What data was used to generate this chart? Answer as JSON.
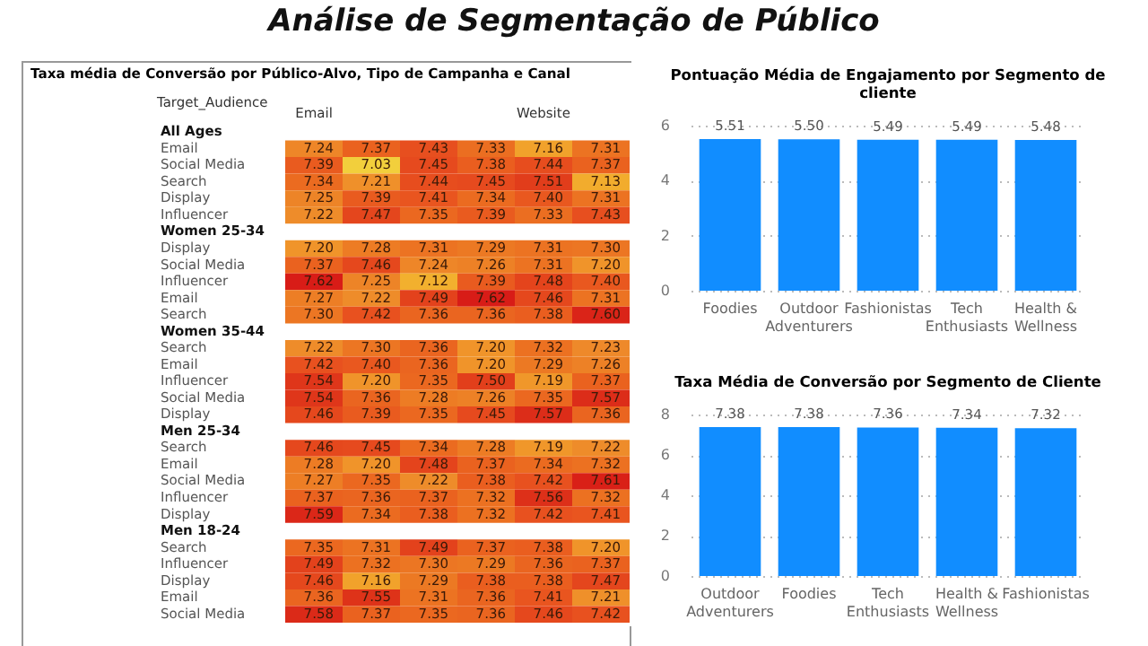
{
  "chart_data": [
    {
      "type": "heatmap",
      "title": "Taxa média de Conversão por Público-Alvo, Tipo de Campanha e Canal",
      "ylabel": "Target_Audience",
      "annotations": [
        "Análise de Segmentação de Público"
      ],
      "categories": [
        "Email",
        null,
        null,
        null,
        "Website",
        null
      ],
      "y_categories": [
        "All Ages",
        "Email",
        "Social Media",
        "Search",
        "Display",
        "Influencer",
        "Women 25-34",
        "Display",
        "Social Media",
        "Influencer",
        "Email",
        "Search",
        "Women 35-44",
        "Search",
        "Email",
        "Influencer",
        "Social Media",
        "Display",
        "Men 25-34",
        "Search",
        "Email",
        "Social Media",
        "Influencer",
        "Display",
        "Men 18-24",
        "Search",
        "Influencer",
        "Display",
        "Email",
        "Social Media"
      ],
      "cells": [
        [
          null,
          null,
          null,
          null,
          null,
          null
        ],
        [
          7.24,
          7.37,
          7.43,
          7.33,
          7.16,
          7.31
        ],
        [
          7.39,
          7.03,
          7.45,
          7.38,
          7.44,
          7.37
        ],
        [
          7.34,
          7.21,
          7.44,
          7.45,
          7.51,
          7.13
        ],
        [
          7.25,
          7.39,
          7.41,
          7.34,
          7.4,
          7.31
        ],
        [
          7.22,
          7.47,
          7.35,
          7.39,
          7.33,
          7.43
        ],
        [
          null,
          null,
          null,
          null,
          null,
          null
        ],
        [
          7.2,
          7.28,
          7.31,
          7.29,
          7.31,
          7.3
        ],
        [
          7.37,
          7.46,
          7.24,
          7.26,
          7.31,
          7.2
        ],
        [
          7.62,
          7.25,
          7.12,
          7.39,
          7.48,
          7.4
        ],
        [
          7.27,
          7.22,
          7.49,
          7.62,
          7.46,
          7.31
        ],
        [
          7.3,
          7.42,
          7.36,
          7.36,
          7.38,
          7.6
        ],
        [
          null,
          null,
          null,
          null,
          null,
          null
        ],
        [
          7.22,
          7.3,
          7.36,
          7.2,
          7.32,
          7.23
        ],
        [
          7.42,
          7.4,
          7.36,
          7.2,
          7.29,
          7.26
        ],
        [
          7.54,
          7.2,
          7.35,
          7.5,
          7.19,
          7.37
        ],
        [
          7.54,
          7.36,
          7.28,
          7.26,
          7.35,
          7.57
        ],
        [
          7.46,
          7.39,
          7.35,
          7.45,
          7.57,
          7.36
        ],
        [
          null,
          null,
          null,
          null,
          null,
          null
        ],
        [
          7.46,
          7.45,
          7.34,
          7.28,
          7.19,
          7.22
        ],
        [
          7.28,
          7.2,
          7.48,
          7.37,
          7.34,
          7.32
        ],
        [
          7.27,
          7.35,
          7.22,
          7.38,
          7.42,
          7.61
        ],
        [
          7.37,
          7.36,
          7.37,
          7.32,
          7.56,
          7.32
        ],
        [
          7.59,
          7.34,
          7.38,
          7.32,
          7.42,
          7.41
        ],
        [
          null,
          null,
          null,
          null,
          null,
          null
        ],
        [
          7.35,
          7.31,
          7.49,
          7.37,
          7.38,
          7.2
        ],
        [
          7.49,
          7.32,
          7.3,
          7.29,
          7.36,
          7.37
        ],
        [
          7.46,
          7.16,
          7.29,
          7.38,
          7.38,
          7.47
        ],
        [
          7.36,
          7.55,
          7.31,
          7.36,
          7.41,
          7.21
        ],
        [
          7.58,
          7.37,
          7.35,
          7.36,
          7.46,
          7.42
        ]
      ],
      "cell_labels": [
        [
          null,
          null,
          null,
          null,
          null,
          null
        ],
        [
          "7.24",
          "7.37",
          "7.43",
          "7.33",
          "7.16",
          "7.31"
        ],
        [
          "7.39",
          "7.03",
          "7.45",
          "7.38",
          "7.44",
          "7.37"
        ],
        [
          "7.34",
          "7.21",
          "7.44",
          "7.45",
          "7.51",
          "7.13"
        ],
        [
          "7.25",
          "7.39",
          "7.41",
          "7.34",
          "7.40",
          "7.31"
        ],
        [
          "7.22",
          "7.47",
          "7.35",
          "7.39",
          "7.33",
          "7.43"
        ],
        [
          null,
          null,
          null,
          null,
          null,
          null
        ],
        [
          "7.20",
          "7.28",
          "7.31",
          "7.29",
          "7.31",
          "7.30"
        ],
        [
          "7.37",
          "7.46",
          "7.24",
          "7.26",
          "7.31",
          "7.20"
        ],
        [
          "7.62",
          "7.25",
          "7.12",
          "7.39",
          "7.48",
          "7.40"
        ],
        [
          "7.27",
          "7.22",
          "7.49",
          "7.62",
          "7.46",
          "7.31"
        ],
        [
          "7.30",
          "7.42",
          "7.36",
          "7.36",
          "7.38",
          "7.60"
        ],
        [
          null,
          null,
          null,
          null,
          null,
          null
        ],
        [
          "7.22",
          "7.30",
          "7.36",
          "7.20",
          "7.32",
          "7.23"
        ],
        [
          "7.42",
          "7.40",
          "7.36",
          "7.20",
          "7.29",
          "7.26"
        ],
        [
          "7.54",
          "7.20",
          "7.35",
          "7.50",
          "7.19",
          "7.37"
        ],
        [
          "7.54",
          "7.36",
          "7.28",
          "7.26",
          "7.35",
          "7.57"
        ],
        [
          "7.46",
          "7.39",
          "7.35",
          "7.45",
          "7.57",
          "7.36"
        ],
        [
          null,
          null,
          null,
          null,
          null,
          null
        ],
        [
          "7.46",
          "7.45",
          "7.34",
          "7.28",
          "7.19",
          "7.22"
        ],
        [
          "7.28",
          "7.20",
          "7.48",
          "7.37",
          "7.34",
          "7.32"
        ],
        [
          "7.27",
          "7.35",
          "7.22",
          "7.38",
          "7.42",
          "7.61"
        ],
        [
          "7.37",
          "7.36",
          "7.37",
          "7.32",
          "7.56",
          "7.32"
        ],
        [
          "7.59",
          "7.34",
          "7.38",
          "7.32",
          "7.42",
          "7.41"
        ],
        [
          null,
          null,
          null,
          null,
          null,
          null
        ],
        [
          "7.35",
          "7.31",
          "7.49",
          "7.37",
          "7.38",
          "7.20"
        ],
        [
          "7.49",
          "7.32",
          "7.30",
          "7.29",
          "7.36",
          "7.37"
        ],
        [
          "7.46",
          "7.16",
          "7.29",
          "7.38",
          "7.38",
          "7.47"
        ],
        [
          "7.36",
          "7.55",
          "7.31",
          "7.36",
          "7.41",
          "7.21"
        ],
        [
          "7.58",
          "7.37",
          "7.35",
          "7.36",
          "7.46",
          "7.42"
        ]
      ]
    },
    {
      "type": "bar",
      "title": "Pontuação Média de Engajamento por Segmento de cliente",
      "categories": [
        "Foodies",
        "Outdoor Adventurers",
        "Fashionistas",
        "Tech Enthusiasts",
        "Health & Wellness"
      ],
      "values": [
        5.51,
        5.5,
        5.49,
        5.49,
        5.48
      ],
      "value_labels": [
        "5.51",
        "5.50",
        "5.49",
        "5.49",
        "5.48"
      ],
      "color": "#118dff",
      "ylim": [
        0,
        6
      ],
      "yticks": [
        0,
        2,
        4,
        6
      ],
      "grid": "y"
    },
    {
      "type": "bar",
      "title": "Taxa Média de Conversão por Segmento de Cliente",
      "categories": [
        "Outdoor Adventurers",
        "Foodies",
        "Tech Enthusiasts",
        "Health & Wellness",
        "Fashionistas"
      ],
      "values": [
        7.38,
        7.38,
        7.36,
        7.34,
        7.32
      ],
      "value_labels": [
        "7.38",
        "7.38",
        "7.36",
        "7.34",
        "7.32"
      ],
      "color": "#118dff",
      "ylim": [
        0,
        8
      ],
      "yticks": [
        0,
        2,
        4,
        6,
        8
      ],
      "grid": "y"
    }
  ]
}
